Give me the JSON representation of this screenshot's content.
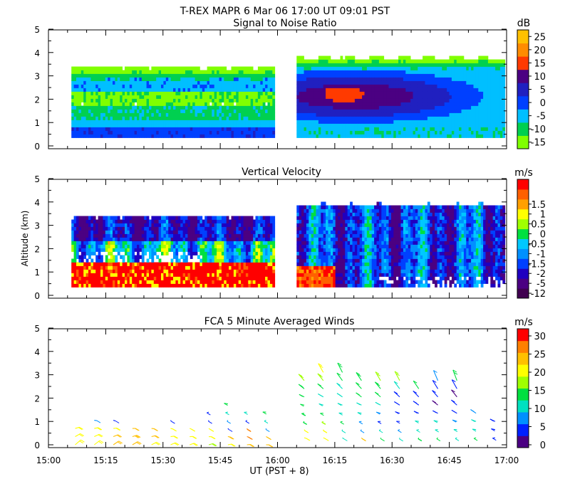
{
  "header": {
    "title": "T-REX   MAPR   6 Mar 06   17:00 UT   09:01   PST"
  },
  "x_axis": {
    "label": "UT  (PST + 8)",
    "start_min": 0,
    "end_min": 120,
    "ticks": [
      {
        "min": 0,
        "label": "15:00"
      },
      {
        "min": 15,
        "label": "15:15"
      },
      {
        "min": 30,
        "label": "15:30"
      },
      {
        "min": 45,
        "label": "15:45"
      },
      {
        "min": 60,
        "label": "16:00"
      },
      {
        "min": 75,
        "label": "16:15"
      },
      {
        "min": 90,
        "label": "16:30"
      },
      {
        "min": 105,
        "label": "16:45"
      },
      {
        "min": 120,
        "label": "17:00"
      }
    ]
  },
  "y_axis": {
    "label": "Altitude (km)",
    "ticks": [
      "0",
      "1",
      "2",
      "3",
      "4",
      "5"
    ]
  },
  "panels": [
    {
      "id": "snr",
      "title": "Signal to Noise Ratio",
      "unit": "dB",
      "colors": [
        "#80ff00",
        "#00d050",
        "#00bfff",
        "#0040ff",
        "#2020c0",
        "#4b0082",
        "#ff3a00",
        "#ff8c00",
        "#ffc000"
      ],
      "labels": [
        "-15",
        "-10",
        "-5",
        "0",
        "5",
        "10",
        "15",
        "20",
        "25"
      ],
      "boundaries": [
        -17.5,
        -12.5,
        -7.5,
        -2.5,
        2.5,
        7.5,
        12.5,
        17.5,
        22.5,
        27.5
      ]
    },
    {
      "id": "vv",
      "title": "Vertical Velocity",
      "unit": "m/s",
      "colors": [
        "#400050",
        "#4b0082",
        "#2000c0",
        "#0040ff",
        "#0090ff",
        "#00c8ff",
        "#00e040",
        "#a0ff00",
        "#ffff00",
        "#ffa000",
        "#ff6000",
        "#ff0000"
      ],
      "labels": [
        "-12",
        "-5",
        "-2",
        "-1.5",
        "-1",
        "-0.5",
        "0",
        "0.5",
        "1",
        "1.5"
      ],
      "boundaries": [
        -12,
        -5,
        -2,
        -1.5,
        -1,
        -0.5,
        0,
        0.5,
        1,
        1.5,
        2
      ]
    },
    {
      "id": "winds",
      "title": "FCA 5 Minute Averaged Winds",
      "unit": "m/s",
      "colors": [
        "#4b0082",
        "#0020ff",
        "#0090ff",
        "#00e0c0",
        "#00e040",
        "#a0ff00",
        "#ffff00",
        "#ffc000",
        "#ff8000",
        "#ff0000"
      ],
      "labels": [
        "0",
        "5",
        "10",
        "15",
        "20",
        "25",
        "30"
      ]
    }
  ],
  "chart_data": [
    {
      "type": "heatmap",
      "title": "Signal to Noise Ratio",
      "xlabel": "UT  (PST + 8)",
      "ylabel": "Altitude (km)",
      "x_range_ut": [
        "15:00",
        "17:00"
      ],
      "ylim": [
        0,
        5
      ],
      "colorbar_unit": "dB",
      "colorbar_levels": [
        -15,
        -10,
        -5,
        0,
        5,
        10,
        15,
        20,
        25
      ],
      "data_segments": [
        {
          "start_ut": "15:06",
          "end_ut": "15:59",
          "top_km": 3.3,
          "bottom_km": 0.35,
          "note": "layered: ~-5 dB near 0.5 km, -10 to -15 dB mid levels, -5 dB at 2.5 km, -15 dB top"
        },
        {
          "start_ut": "16:05",
          "end_ut": "16:58",
          "top_km": 3.7,
          "bottom_km": 0.35,
          "peak_db": 15,
          "peak_ut": "16:20",
          "peak_km": 2.1
        }
      ]
    },
    {
      "type": "heatmap",
      "title": "Vertical Velocity",
      "xlabel": "UT  (PST + 8)",
      "ylabel": "Altitude (km)",
      "x_range_ut": [
        "15:00",
        "17:00"
      ],
      "ylim": [
        0,
        5
      ],
      "colorbar_unit": "m/s",
      "colorbar_levels": [
        -12,
        -5,
        -2,
        -1.5,
        -1,
        -0.5,
        0,
        0.5,
        1,
        1.5
      ],
      "data_segments": [
        {
          "start_ut": "15:06",
          "end_ut": "15:59",
          "top_km": 3.3,
          "bottom_km": 0.35,
          "note": "strong updrafts (1.5 m/s) below 1.3 km, downdrafts (-2 to -5) above 2 km"
        },
        {
          "start_ut": "16:05",
          "end_ut": "16:58",
          "top_km": 3.8,
          "bottom_km": 0.35,
          "note": "mostly downdrafts -1 to -2 m/s, updrafts near surface before 16:15"
        }
      ]
    },
    {
      "type": "scatter",
      "subtype": "wind-barbs",
      "title": "FCA 5 Minute Averaged Winds",
      "xlabel": "UT  (PST + 8)",
      "ylabel": "Altitude (km)",
      "ylim": [
        0,
        5
      ],
      "colorbar_unit": "m/s",
      "colorbar_levels": [
        0,
        5,
        10,
        15,
        20,
        25,
        30
      ],
      "stations_ut": [
        "15:07",
        "15:12",
        "15:17",
        "15:22",
        "15:27",
        "15:32",
        "15:37",
        "15:42",
        "15:47",
        "15:52",
        "15:57",
        "16:07",
        "16:12",
        "16:17",
        "16:22",
        "16:27",
        "16:32",
        "16:37",
        "16:42",
        "16:47",
        "16:52",
        "16:57"
      ],
      "barb_rows": [
        {
          "t": 7,
          "speeds": [
            22,
            22,
            20
          ]
        },
        {
          "t": 12,
          "speeds": [
            22,
            22,
            20,
            8
          ]
        },
        {
          "t": 17,
          "speeds": [
            24,
            24,
            22,
            6
          ]
        },
        {
          "t": 22,
          "speeds": [
            24,
            26,
            24
          ]
        },
        {
          "t": 27,
          "speeds": [
            22,
            24,
            24
          ]
        },
        {
          "t": 32,
          "speeds": [
            20,
            22,
            22,
            5
          ]
        },
        {
          "t": 37,
          "speeds": [
            20,
            22,
            20
          ]
        },
        {
          "t": 42,
          "speeds": [
            18,
            20,
            20,
            4,
            4
          ]
        },
        {
          "t": 47,
          "speeds": [
            22,
            26,
            4,
            8,
            12,
            14
          ]
        },
        {
          "t": 52,
          "speeds": [
            24,
            28,
            28,
            4,
            10
          ]
        },
        {
          "t": 57,
          "speeds": [
            24,
            26,
            8,
            10,
            14
          ]
        },
        {
          "t": 67,
          "speeds": [
            20,
            20,
            16,
            16,
            14,
            14,
            16,
            18
          ]
        },
        {
          "t": 72,
          "speeds": [
            22,
            22,
            18,
            14,
            12,
            12,
            14,
            18,
            20
          ]
        },
        {
          "t": 77,
          "speeds": [
            12,
            12,
            14,
            12,
            10,
            10,
            12,
            14,
            16
          ]
        },
        {
          "t": 82,
          "speeds": [
            24,
            8,
            8,
            10,
            12,
            14,
            14,
            16
          ]
        },
        {
          "t": 87,
          "speeds": [
            14,
            10,
            6,
            8,
            10,
            14,
            16,
            18
          ]
        },
        {
          "t": 92,
          "speeds": [
            12,
            8,
            6,
            4,
            4,
            6,
            10,
            18
          ]
        },
        {
          "t": 97,
          "speeds": [
            16,
            12,
            10,
            6,
            4,
            4,
            14
          ]
        },
        {
          "t": 102,
          "speeds": [
            14,
            12,
            10,
            6,
            2,
            4,
            4,
            8
          ]
        },
        {
          "t": 107,
          "speeds": [
            12,
            10,
            8,
            6,
            4,
            2,
            4,
            16
          ]
        },
        {
          "t": 112,
          "speeds": [
            14,
            12,
            10,
            8
          ]
        },
        {
          "t": 117,
          "speeds": [
            6,
            6,
            6
          ]
        }
      ]
    }
  ]
}
